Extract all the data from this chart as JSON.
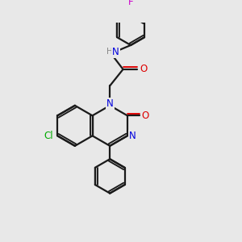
{
  "background_color": "#e8e8e8",
  "bond_color": "#1a1a1a",
  "atom_colors": {
    "N": "#0000dd",
    "O": "#dd0000",
    "Cl": "#00aa00",
    "F": "#cc00cc",
    "H": "#888888",
    "C": "#1a1a1a"
  },
  "figsize": [
    3.0,
    3.0
  ],
  "dpi": 100
}
